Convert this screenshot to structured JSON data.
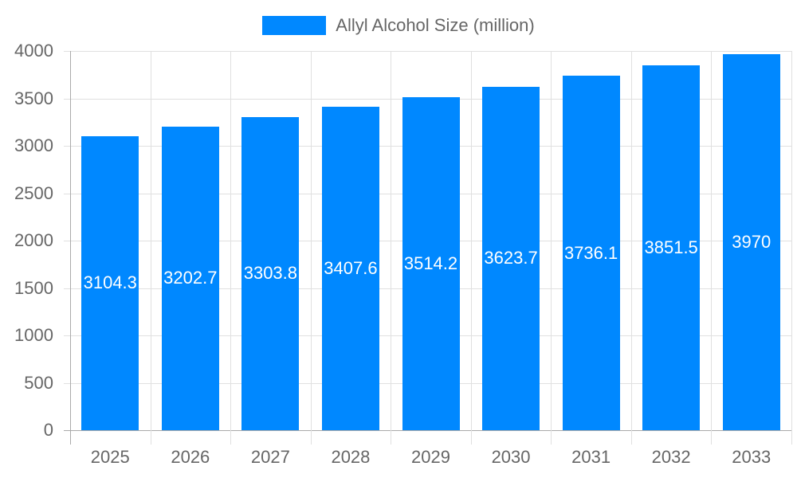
{
  "chart_data": {
    "type": "bar",
    "title": "",
    "categories": [
      "2025",
      "2026",
      "2027",
      "2028",
      "2029",
      "2030",
      "2031",
      "2032",
      "2033"
    ],
    "series": [
      {
        "name": "Allyl Alcohol Size (million)",
        "color": "#0088FF",
        "values": [
          3104.3,
          3202.7,
          3303.8,
          3407.6,
          3514.2,
          3623.7,
          3736.1,
          3851.5,
          3970
        ]
      }
    ],
    "data_labels": [
      "3104.3",
      "3202.7",
      "3303.8",
      "3407.6",
      "3514.2",
      "3623.7",
      "3736.1",
      "3851.5",
      "3970"
    ],
    "xlabel": "",
    "ylabel": "",
    "ylim": [
      0,
      4000
    ],
    "yticks": [
      "0",
      "500",
      "1000",
      "1500",
      "2000",
      "2500",
      "3000",
      "3500",
      "4000"
    ],
    "grid": true,
    "legend_position": "top"
  },
  "legend": {
    "label": "Allyl Alcohol Size (million)",
    "color": "#0088FF"
  },
  "colors": {
    "bar": "#0088FF",
    "grid": "#e0e0e0",
    "axis": "#aaaaaa",
    "text": "#666666"
  }
}
